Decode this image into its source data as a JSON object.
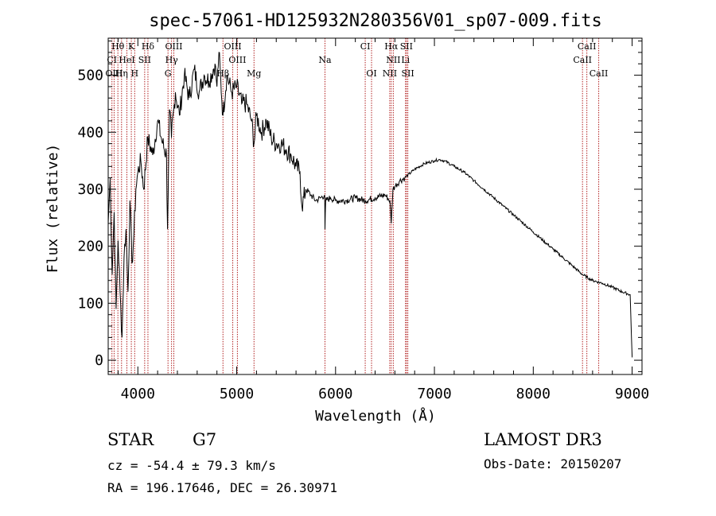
{
  "chart_data": {
    "type": "line",
    "title": "spec-57061-HD125932N280356V01_sp07-009.fits",
    "xlabel": "Wavelength (Å)",
    "ylabel": "Flux (relative)",
    "xlim": [
      3700,
      9100
    ],
    "ylim": [
      -25,
      565
    ],
    "xticks": [
      4000,
      5000,
      6000,
      7000,
      8000,
      9000
    ],
    "yticks": [
      0,
      100,
      200,
      300,
      400,
      500
    ],
    "series": [
      {
        "name": "spectrum",
        "x": [
          3700,
          3720,
          3740,
          3760,
          3780,
          3800,
          3820,
          3840,
          3860,
          3880,
          3900,
          3920,
          3940,
          3960,
          3980,
          4000,
          4030,
          4060,
          4100,
          4150,
          4200,
          4250,
          4290,
          4300,
          4320,
          4340,
          4380,
          4420,
          4470,
          4520,
          4570,
          4620,
          4670,
          4720,
          4780,
          4800,
          4820,
          4861,
          4900,
          4950,
          5000,
          5050,
          5100,
          5150,
          5175,
          5200,
          5250,
          5300,
          5350,
          5400,
          5450,
          5500,
          5550,
          5600,
          5640,
          5660,
          5700,
          5750,
          5800,
          5850,
          5890,
          5893,
          5900,
          5950,
          6000,
          6100,
          6200,
          6300,
          6400,
          6500,
          6550,
          6563,
          6580,
          6600,
          6650,
          6700,
          6800,
          6900,
          7000,
          7050,
          7100,
          7200,
          7300,
          7400,
          7500,
          7600,
          7700,
          7800,
          7900,
          8000,
          8100,
          8200,
          8300,
          8400,
          8500,
          8600,
          8700,
          8800,
          8900,
          8980,
          9000
        ],
        "y": [
          240,
          320,
          150,
          260,
          90,
          210,
          120,
          40,
          180,
          230,
          120,
          280,
          170,
          220,
          300,
          330,
          350,
          300,
          390,
          360,
          420,
          380,
          360,
          230,
          440,
          390,
          470,
          430,
          500,
          460,
          510,
          470,
          500,
          490,
          520,
          480,
          540,
          430,
          500,
          470,
          480,
          450,
          450,
          420,
          380,
          430,
          400,
          420,
          390,
          380,
          380,
          370,
          360,
          340,
          330,
          270,
          300,
          290,
          280,
          285,
          290,
          230,
          280,
          285,
          280,
          280,
          285,
          280,
          285,
          290,
          280,
          240,
          300,
          305,
          315,
          320,
          335,
          345,
          350,
          352,
          350,
          340,
          330,
          315,
          300,
          285,
          270,
          255,
          240,
          225,
          210,
          195,
          180,
          165,
          150,
          140,
          135,
          128,
          120,
          115,
          5
        ]
      }
    ],
    "lines": [
      {
        "label": "Hθ",
        "wl": 3798,
        "row": 1
      },
      {
        "label": "K",
        "wl": 3934,
        "row": 1
      },
      {
        "label": "Hδ",
        "wl": 4102,
        "row": 1
      },
      {
        "label": "OIII",
        "wl": 4364,
        "row": 1
      },
      {
        "label": "OIII",
        "wl": 4960,
        "row": 1
      },
      {
        "label": "CI",
        "wl": 6300,
        "row": 1
      },
      {
        "label": "Hα",
        "wl": 6563,
        "row": 1
      },
      {
        "label": "SII",
        "wl": 6717,
        "row": 1
      },
      {
        "label": "CaII",
        "wl": 8542,
        "row": 1
      },
      {
        "label": "CI",
        "wl": 3738,
        "row": 2
      },
      {
        "label": "HeI",
        "wl": 3889,
        "row": 2
      },
      {
        "label": "SII",
        "wl": 4069,
        "row": 2
      },
      {
        "label": "Hγ",
        "wl": 4341,
        "row": 2
      },
      {
        "label": "OIII",
        "wl": 5007,
        "row": 2
      },
      {
        "label": "Na",
        "wl": 5893,
        "row": 2
      },
      {
        "label": "NII",
        "wl": 6584,
        "row": 2
      },
      {
        "label": "Li",
        "wl": 6708,
        "row": 2
      },
      {
        "label": "CaII",
        "wl": 8498,
        "row": 2
      },
      {
        "label": "OIII",
        "wl": 3760,
        "row": 3
      },
      {
        "label": "Hη",
        "wl": 3835,
        "row": 3
      },
      {
        "label": "H",
        "wl": 3968,
        "row": 3
      },
      {
        "label": "G",
        "wl": 4305,
        "row": 3
      },
      {
        "label": "Hβ",
        "wl": 4861,
        "row": 3
      },
      {
        "label": "Mg",
        "wl": 5175,
        "row": 3
      },
      {
        "label": "OI",
        "wl": 6364,
        "row": 3
      },
      {
        "label": "NII",
        "wl": 6548,
        "row": 3
      },
      {
        "label": "SII",
        "wl": 6731,
        "row": 3
      },
      {
        "label": "CaII",
        "wl": 8662,
        "row": 3
      }
    ]
  },
  "info": {
    "object_class": "STAR",
    "subclass": "G7",
    "survey": "LAMOST DR3",
    "cz": "cz = -54.4 ± 79.3 km/s",
    "obs_date": "Obs-Date: 20150207",
    "coords": "RA = 196.17646, DEC =  26.30971"
  },
  "colors": {
    "line_markers": "#b22222",
    "spectrum": "#000000"
  }
}
